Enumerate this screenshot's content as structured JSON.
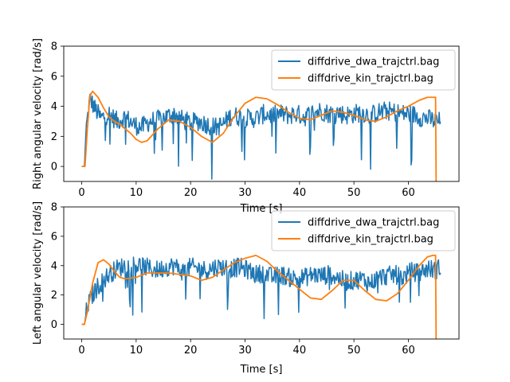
{
  "chart_data": [
    {
      "type": "line",
      "xlabel": "Time [s]",
      "ylabel": "Right angular velocity [rad/s]",
      "xlim": [
        -3.3,
        69.3
      ],
      "ylim": [
        -1,
        8
      ],
      "xticks": [
        0,
        10,
        20,
        30,
        40,
        50,
        60
      ],
      "yticks": [
        0,
        2,
        4,
        6,
        8
      ],
      "grid": false,
      "legend_position": "top-right",
      "series": [
        {
          "name": "diffdrive_dwa_trajctrl.bag",
          "color": "#1f77b4",
          "style": "noisy",
          "x": [
            0,
            0.5,
            0.8,
            1.5,
            2.5,
            3.5,
            5,
            6.5,
            8,
            9.5,
            11,
            12.5,
            14,
            15.5,
            17,
            18.5,
            20,
            21.5,
            23,
            24.5,
            26,
            27.5,
            29,
            30.5,
            32,
            33.5,
            35,
            36.5,
            38,
            39.5,
            41,
            42.5,
            44,
            45.5,
            47,
            48.5,
            50,
            51.5,
            53,
            54.5,
            56,
            57.5,
            59,
            60.5,
            62,
            63.5,
            65,
            66
          ],
          "values": [
            0,
            0,
            2.5,
            4.5,
            3.8,
            3.2,
            3.5,
            3.0,
            3.3,
            2.8,
            2.6,
            3.0,
            3.1,
            3.3,
            3.5,
            3.1,
            2.9,
            3.0,
            2.8,
            2.6,
            2.8,
            3.4,
            3.3,
            3.2,
            3.2,
            3.5,
            3.4,
            3.5,
            3.4,
            3.5,
            3.3,
            3.6,
            3.7,
            3.5,
            3.6,
            3.4,
            3.5,
            3.6,
            3.4,
            3.6,
            3.7,
            3.6,
            3.5,
            3.5,
            3.3,
            3.2,
            3.0,
            3.0
          ]
        },
        {
          "name": "diffdrive_kin_trajctrl.bag",
          "color": "#ff7f0e",
          "style": "smooth",
          "x": [
            0,
            0.6,
            1.0,
            1.5,
            2,
            3,
            4,
            5,
            6,
            7,
            8,
            9,
            10,
            11,
            12,
            14,
            16,
            18,
            20,
            22,
            24,
            26,
            28,
            30,
            32,
            34,
            36,
            38,
            40,
            42,
            44,
            46,
            48,
            50,
            52,
            54,
            56,
            58,
            60,
            62,
            63.5,
            64.5,
            65,
            65.1
          ],
          "values": [
            0,
            0,
            2.3,
            4.7,
            5.0,
            4.6,
            3.9,
            3.3,
            3.0,
            2.8,
            2.5,
            2.2,
            1.8,
            1.6,
            1.7,
            2.5,
            3.1,
            3.0,
            2.6,
            2.0,
            1.6,
            2.2,
            3.3,
            4.2,
            4.6,
            4.5,
            4.1,
            3.6,
            3.2,
            3.1,
            3.4,
            3.7,
            3.6,
            3.4,
            3.1,
            3.0,
            3.3,
            3.7,
            4.0,
            4.4,
            4.6,
            4.6,
            4.6,
            -1.2
          ]
        }
      ]
    },
    {
      "type": "line",
      "xlabel": "Time [s]",
      "ylabel": "Left angular velocity [rad/s]",
      "xlim": [
        -3.3,
        69.3
      ],
      "ylim": [
        -1,
        8
      ],
      "xticks": [
        0,
        10,
        20,
        30,
        40,
        50,
        60
      ],
      "yticks": [
        0,
        2,
        4,
        6,
        8
      ],
      "grid": false,
      "legend_position": "top-right",
      "series": [
        {
          "name": "diffdrive_dwa_trajctrl.bag",
          "color": "#1f77b4",
          "style": "noisy",
          "x": [
            0,
            0.5,
            1,
            2,
            3,
            4,
            5,
            6.5,
            8,
            9.5,
            11,
            12.5,
            14,
            15.5,
            17,
            18.5,
            20,
            21.5,
            23,
            24.5,
            26,
            27.5,
            29,
            30.5,
            32,
            33.5,
            35,
            36.5,
            38,
            39.5,
            41,
            42.5,
            44,
            45.5,
            47,
            48.5,
            50,
            51.5,
            53,
            54.5,
            56,
            57.5,
            59,
            60.5,
            62,
            63.5,
            65,
            66
          ],
          "values": [
            0,
            0,
            1.2,
            2.0,
            2.6,
            3.0,
            3.4,
            3.8,
            4.0,
            4.1,
            4.0,
            3.8,
            3.7,
            3.9,
            4.0,
            3.6,
            3.9,
            3.8,
            3.7,
            3.9,
            3.9,
            3.8,
            3.9,
            3.7,
            3.4,
            3.5,
            3.2,
            3.4,
            3.2,
            3.1,
            3.2,
            3.4,
            3.3,
            3.4,
            3.2,
            2.9,
            3.0,
            3.1,
            2.8,
            3.2,
            3.3,
            3.4,
            3.2,
            3.6,
            3.5,
            3.8,
            3.7,
            3.9
          ]
        },
        {
          "name": "diffdrive_kin_trajctrl.bag",
          "color": "#ff7f0e",
          "style": "smooth",
          "x": [
            0,
            0.5,
            1,
            2,
            3,
            4,
            5,
            6,
            7,
            8,
            10,
            12,
            14,
            16,
            18,
            20,
            22,
            24,
            26,
            28,
            30,
            32,
            34,
            36,
            38,
            40,
            42,
            44,
            46,
            48,
            50,
            52,
            54,
            56,
            58,
            60,
            62,
            63.5,
            64.5,
            65,
            65.1
          ],
          "values": [
            0,
            0,
            0.8,
            2.8,
            4.2,
            4.4,
            4.1,
            3.6,
            3.2,
            3.1,
            3.2,
            3.5,
            3.5,
            3.5,
            3.4,
            3.3,
            3.0,
            3.2,
            3.7,
            4.2,
            4.5,
            4.7,
            4.3,
            3.6,
            3.0,
            2.4,
            1.8,
            1.7,
            2.3,
            3.0,
            3.0,
            2.3,
            1.7,
            1.6,
            2.1,
            3.0,
            4.0,
            4.6,
            4.7,
            4.7,
            -1.2
          ]
        }
      ]
    }
  ]
}
